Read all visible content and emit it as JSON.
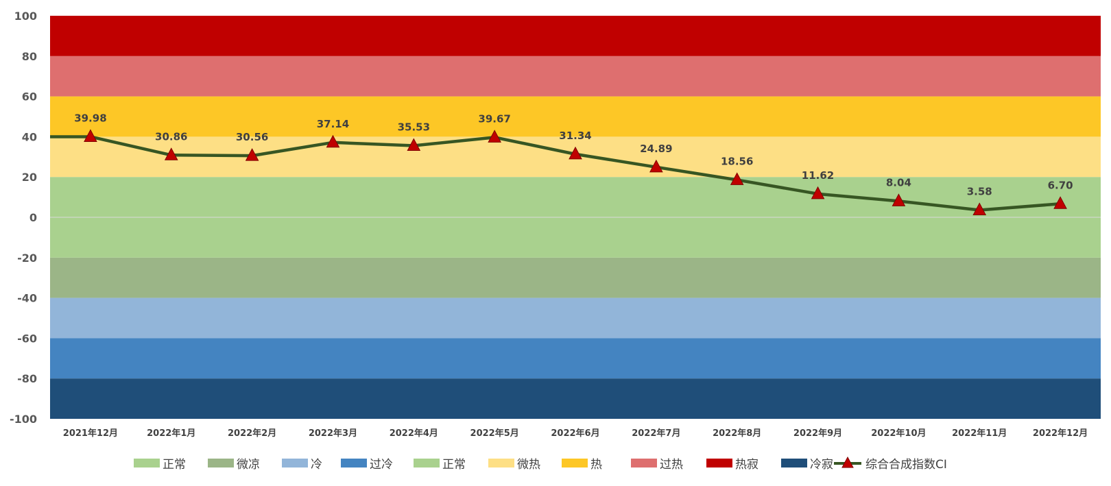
{
  "chart_data": {
    "type": "line",
    "ylim": [
      -100,
      100
    ],
    "yticks": [
      100,
      80,
      60,
      40,
      20,
      0,
      -20,
      -40,
      -60,
      -80,
      -100
    ],
    "categories": [
      "2021年12月",
      "2022年1月",
      "2022年2月",
      "2022年3月",
      "2022年4月",
      "2022年5月",
      "2022年6月",
      "2022年7月",
      "2022年8月",
      "2022年9月",
      "2022年10月",
      "2022年11月",
      "2022年12月"
    ],
    "series": [
      {
        "name": "综合合成指数CI",
        "values": [
          39.98,
          30.86,
          30.56,
          37.14,
          35.53,
          39.67,
          31.34,
          24.89,
          18.56,
          11.62,
          8.04,
          3.58,
          6.7
        ],
        "labels": [
          "39.98",
          "30.86",
          "30.56",
          "37.14",
          "35.53",
          "39.67",
          "31.34",
          "24.89",
          "18.56",
          "11.62",
          "8.04",
          "3.58",
          "6.70"
        ],
        "line_color": "#375623",
        "marker_color": "#C00000",
        "marker": "triangle"
      }
    ],
    "bands": [
      {
        "name": "正常",
        "from": 0,
        "to": 20,
        "color": "#A9D18E"
      },
      {
        "name": "微凉",
        "from": -40,
        "to": -20,
        "color": "#9BB587"
      },
      {
        "name": "冷",
        "from": -60,
        "to": -40,
        "color": "#92B5D9"
      },
      {
        "name": "过冷",
        "from": -80,
        "to": -60,
        "color": "#4484C1"
      },
      {
        "name": "正常",
        "from": -20,
        "to": 0,
        "color": "#A9D18E"
      },
      {
        "name": "微热",
        "from": 20,
        "to": 40,
        "color": "#FDDF85"
      },
      {
        "name": "热",
        "from": 40,
        "to": 60,
        "color": "#FDC726"
      },
      {
        "name": "过热",
        "from": 60,
        "to": 80,
        "color": "#DE6F6F"
      },
      {
        "name": "热寂",
        "from": 80,
        "to": 100,
        "color": "#C00000"
      },
      {
        "name": "冷寂",
        "from": -100,
        "to": -80,
        "color": "#1F4E79"
      }
    ],
    "legend_position": "bottom"
  }
}
